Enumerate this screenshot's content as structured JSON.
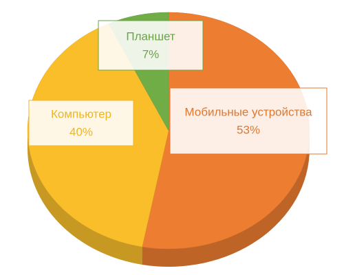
{
  "chart_data": {
    "type": "pie",
    "categories": [
      "Мобильные устройства",
      "Компьютер",
      "Планшет"
    ],
    "values": [
      53,
      40,
      7
    ],
    "value_labels": [
      "53%",
      "40%",
      "7%"
    ],
    "colors": [
      "#ED7D31",
      "#F9BE2A",
      "#70AD47"
    ]
  }
}
